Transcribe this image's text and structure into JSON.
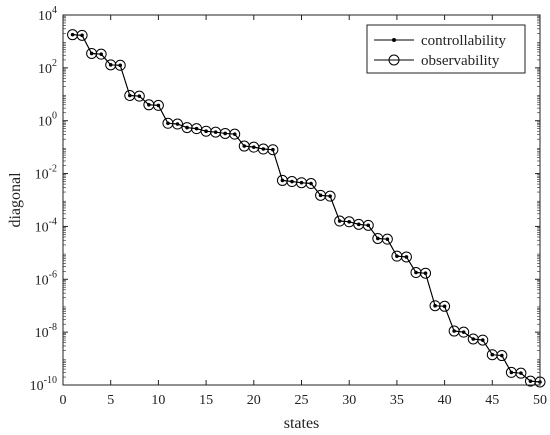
{
  "chart_data": {
    "type": "line",
    "xlabel": "states",
    "ylabel": "diagonal",
    "xlim": [
      0,
      50
    ],
    "xticks": [
      0,
      5,
      10,
      15,
      20,
      25,
      30,
      35,
      40,
      45,
      50
    ],
    "ylim": [
      1e-10,
      10000.0
    ],
    "yscale": "log",
    "yticks": [
      {
        "base": "10",
        "exp": "-10",
        "value": 1e-10
      },
      {
        "base": "10",
        "exp": "-8",
        "value": 1e-08
      },
      {
        "base": "10",
        "exp": "-6",
        "value": 1e-06
      },
      {
        "base": "10",
        "exp": "-4",
        "value": 0.0001
      },
      {
        "base": "10",
        "exp": "-2",
        "value": 0.01
      },
      {
        "base": "10",
        "exp": "0",
        "value": 1
      },
      {
        "base": "10",
        "exp": "2",
        "value": 100
      },
      {
        "base": "10",
        "exp": "4",
        "value": 10000
      }
    ],
    "legend_position": "top-right",
    "x": [
      1,
      2,
      3,
      4,
      5,
      6,
      7,
      8,
      9,
      10,
      11,
      12,
      13,
      14,
      15,
      16,
      17,
      18,
      19,
      20,
      21,
      22,
      23,
      24,
      25,
      26,
      27,
      28,
      29,
      30,
      31,
      32,
      33,
      34,
      35,
      36,
      37,
      38,
      39,
      40,
      41,
      42,
      43,
      44,
      45,
      46,
      47,
      48,
      49,
      50
    ],
    "series": [
      {
        "name": "controllability",
        "marker": "dot",
        "color": "#000000",
        "values": [
          1800,
          1700,
          350,
          330,
          130,
          125,
          9,
          8.5,
          4,
          3.8,
          0.8,
          0.75,
          0.55,
          0.5,
          0.4,
          0.37,
          0.33,
          0.31,
          0.11,
          0.1,
          0.085,
          0.08,
          0.0055,
          0.005,
          0.0045,
          0.0042,
          0.0015,
          0.0014,
          0.00016,
          0.00015,
          0.00012,
          0.00011,
          3.5e-05,
          3.3e-05,
          7.5e-06,
          7e-06,
          1.8e-06,
          1.7e-06,
          1e-07,
          9.5e-08,
          1.1e-08,
          1e-08,
          5.5e-09,
          5e-09,
          1.4e-09,
          1.3e-09,
          3e-10,
          2.8e-10,
          1.4e-10,
          1.3e-10
        ]
      },
      {
        "name": "observability",
        "marker": "circle",
        "color": "#000000",
        "values": [
          1800,
          1700,
          350,
          330,
          130,
          125,
          9,
          8.5,
          4,
          3.8,
          0.8,
          0.75,
          0.55,
          0.5,
          0.4,
          0.37,
          0.33,
          0.31,
          0.11,
          0.1,
          0.085,
          0.08,
          0.0055,
          0.005,
          0.0045,
          0.0042,
          0.0015,
          0.0014,
          0.00016,
          0.00015,
          0.00012,
          0.00011,
          3.5e-05,
          3.3e-05,
          7.5e-06,
          7e-06,
          1.8e-06,
          1.7e-06,
          1e-07,
          9.5e-08,
          1.1e-08,
          1e-08,
          5.5e-09,
          5e-09,
          1.4e-09,
          1.3e-09,
          3e-10,
          2.8e-10,
          1.4e-10,
          1.3e-10
        ]
      }
    ]
  }
}
